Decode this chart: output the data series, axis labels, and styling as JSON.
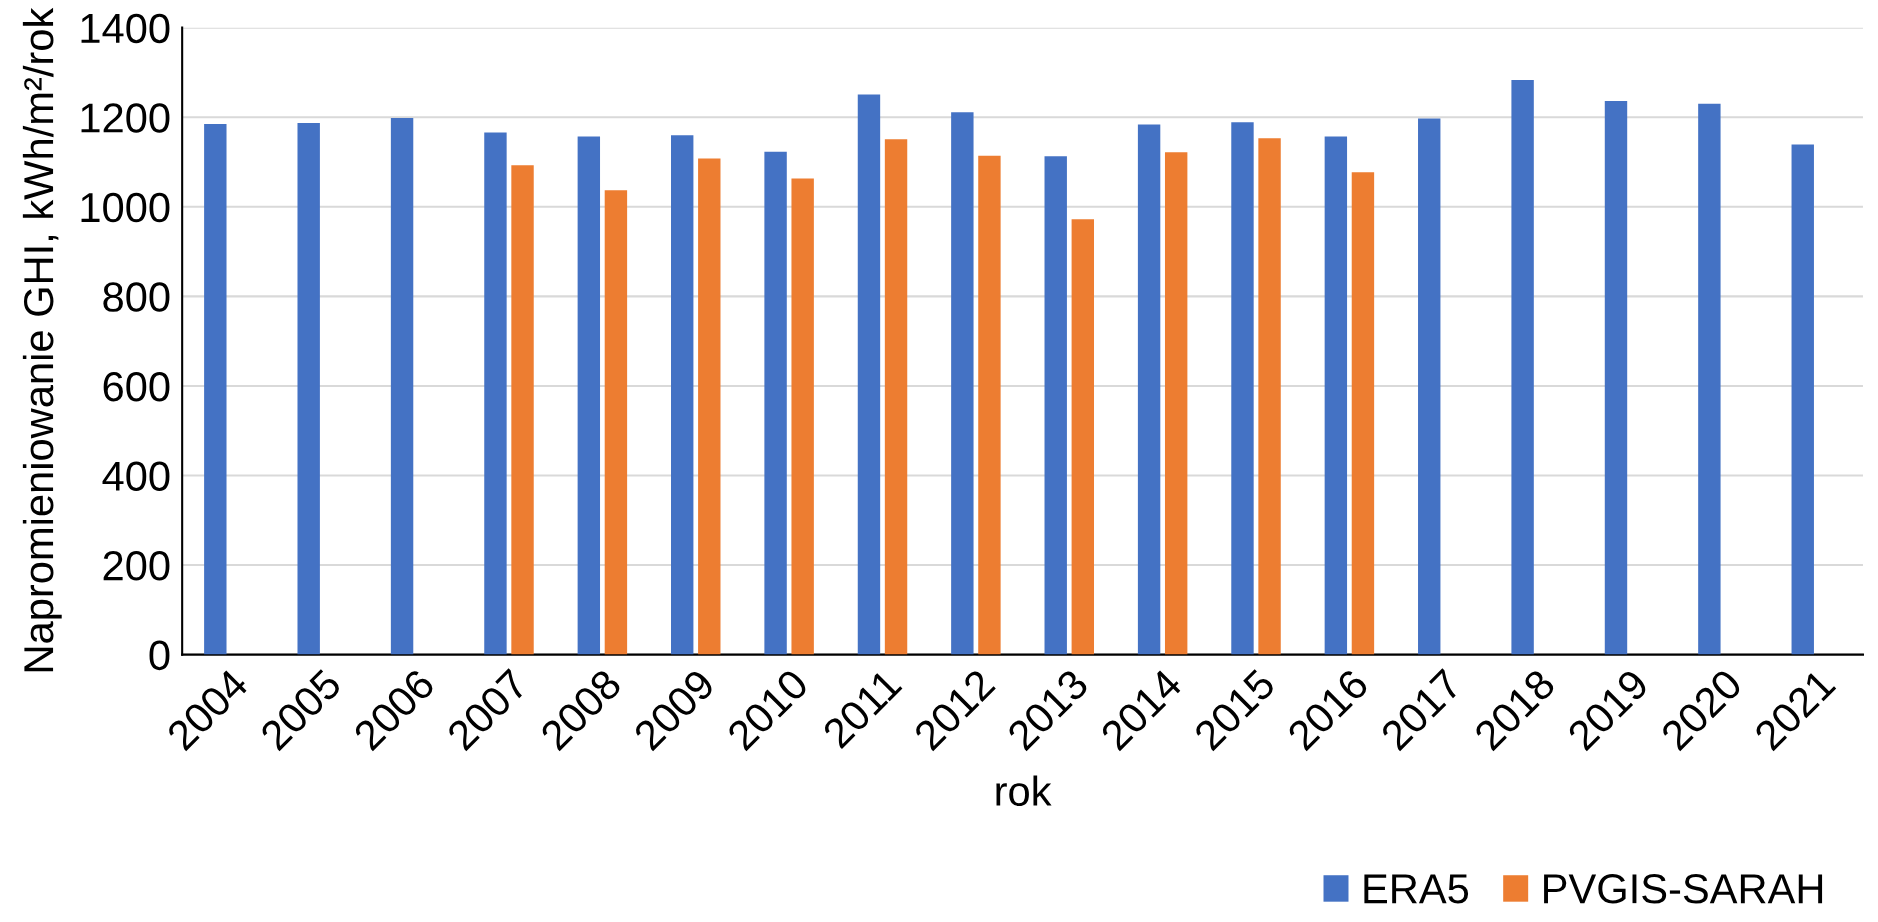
{
  "chart_data": {
    "type": "bar",
    "xlabel": "rok",
    "ylabel": "Napromieniowanie GHI, kWh/m²/rok",
    "categories": [
      "2004",
      "2005",
      "2006",
      "2007",
      "2008",
      "2009",
      "2010",
      "2011",
      "2012",
      "2013",
      "2014",
      "2015",
      "2016",
      "2017",
      "2018",
      "2019",
      "2020",
      "2021"
    ],
    "series": [
      {
        "name": "ERA5",
        "color": "#4472c4",
        "values": [
          1185,
          1187,
          1198,
          1166,
          1157,
          1160,
          1123,
          1251,
          1211,
          1113,
          1184,
          1189,
          1157,
          1197,
          1283,
          1236,
          1230,
          1139
        ]
      },
      {
        "name": "PVGIS-SARAH",
        "color": "#ed7d31",
        "values": [
          null,
          null,
          null,
          1093,
          1037,
          1108,
          1063,
          1151,
          1114,
          972,
          1122,
          1153,
          1077,
          null,
          null,
          null,
          null,
          null
        ]
      }
    ],
    "ylim": [
      0,
      1400
    ],
    "yticks": [
      0,
      200,
      400,
      600,
      800,
      1000,
      1200,
      1400
    ],
    "grid": "y",
    "legend": "bottom right"
  }
}
